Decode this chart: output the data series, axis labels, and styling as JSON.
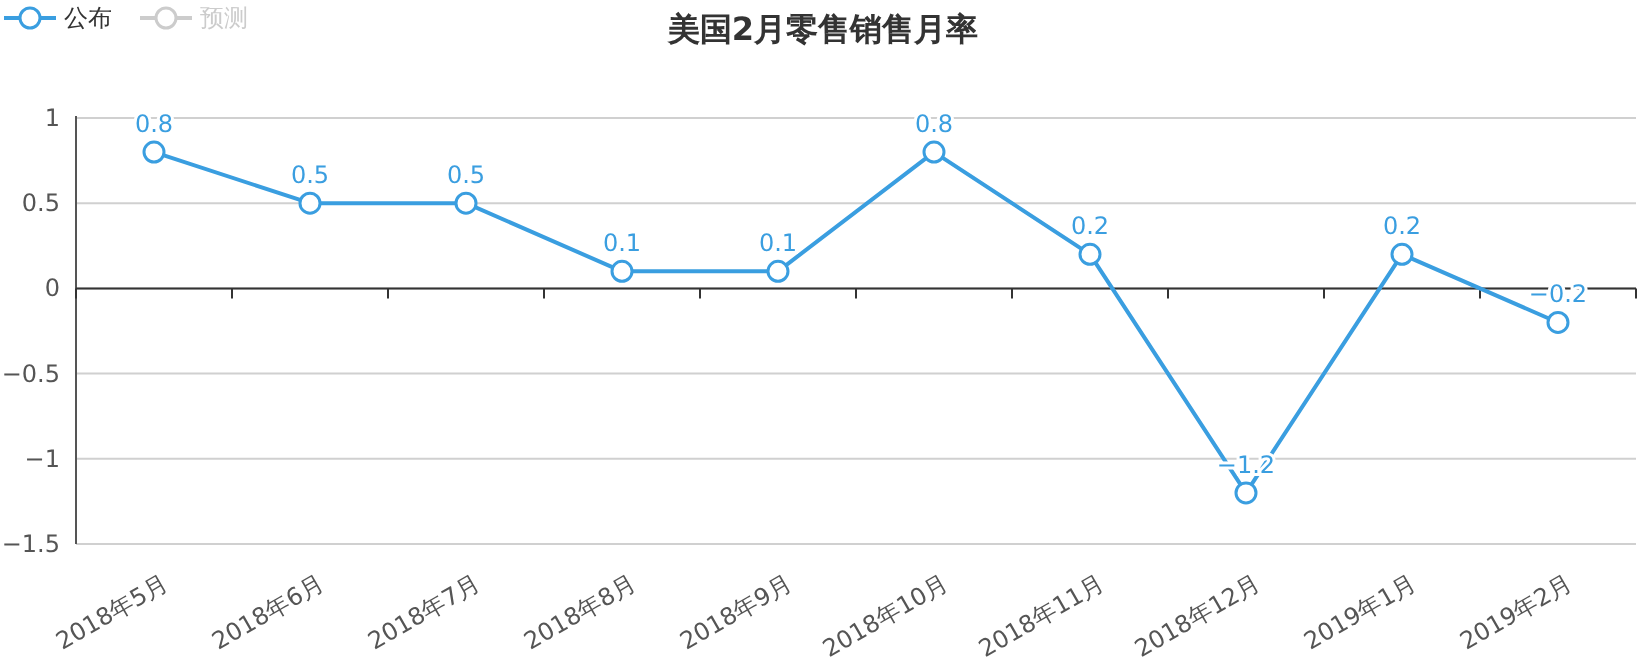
{
  "chart_data": {
    "type": "line",
    "title": "美国2月零售销售月率",
    "categories": [
      "2018年5月",
      "2018年6月",
      "2018年7月",
      "2018年8月",
      "2018年9月",
      "2018年10月",
      "2018年11月",
      "2018年12月",
      "2019年1月",
      "2019年2月"
    ],
    "series": [
      {
        "name": "公布",
        "color": "#3a9ee0",
        "values": [
          0.8,
          0.5,
          0.5,
          0.1,
          0.1,
          0.8,
          0.2,
          -1.2,
          0.2,
          -0.2
        ]
      },
      {
        "name": "预测",
        "color": "#cccccc",
        "values": [
          null,
          null,
          null,
          null,
          null,
          null,
          null,
          null,
          null,
          null
        ]
      }
    ],
    "ylim": [
      -1.5,
      1
    ],
    "yticks": [
      -1.5,
      -1,
      -0.5,
      0,
      0.5,
      1
    ],
    "grid": "y",
    "legend": "top left",
    "marker": "circle",
    "data_labels": true
  }
}
